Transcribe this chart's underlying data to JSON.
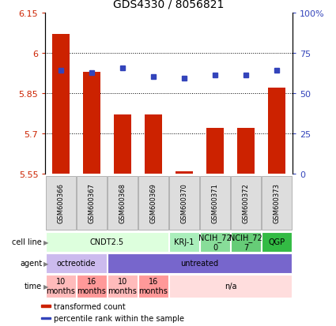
{
  "title": "GDS4330 / 8056821",
  "samples": [
    "GSM600366",
    "GSM600367",
    "GSM600368",
    "GSM600369",
    "GSM600370",
    "GSM600371",
    "GSM600372",
    "GSM600373"
  ],
  "red_values": [
    6.07,
    5.93,
    5.77,
    5.77,
    5.56,
    5.72,
    5.72,
    5.87
  ],
  "blue_values": [
    5.935,
    5.925,
    5.945,
    5.912,
    5.906,
    5.918,
    5.918,
    5.935
  ],
  "ymin": 5.55,
  "ymax": 6.15,
  "yticks": [
    5.55,
    5.7,
    5.85,
    6.0,
    6.15
  ],
  "ytick_labels": [
    "5.55",
    "5.7",
    "5.85",
    "6",
    "6.15"
  ],
  "y2ticks_pct": [
    0,
    25,
    50,
    75,
    100
  ],
  "y2tick_labels": [
    "0",
    "25",
    "50",
    "75",
    "100%"
  ],
  "bar_bottom": 5.55,
  "bar_color": "#cc2200",
  "dot_color": "#3344bb",
  "grid_lines": [
    5.7,
    5.85,
    6.0
  ],
  "cell_line_groups": [
    {
      "label": "CNDT2.5",
      "start": 0,
      "end": 4,
      "color": "#ddffdd"
    },
    {
      "label": "KRJ-1",
      "start": 4,
      "end": 5,
      "color": "#aaeebb"
    },
    {
      "label": "NCIH_72\n0",
      "start": 5,
      "end": 6,
      "color": "#88dd99"
    },
    {
      "label": "NCIH_72\n7",
      "start": 6,
      "end": 7,
      "color": "#66cc77"
    },
    {
      "label": "QGP",
      "start": 7,
      "end": 8,
      "color": "#33bb44"
    }
  ],
  "agent_groups": [
    {
      "label": "octreotide",
      "start": 0,
      "end": 2,
      "color": "#ccbbee"
    },
    {
      "label": "untreated",
      "start": 2,
      "end": 8,
      "color": "#7766cc"
    }
  ],
  "time_groups": [
    {
      "label": "10\nmonths",
      "start": 0,
      "end": 1,
      "color": "#ffbbbb"
    },
    {
      "label": "16\nmonths",
      "start": 1,
      "end": 2,
      "color": "#ff9999"
    },
    {
      "label": "10\nmonths",
      "start": 2,
      "end": 3,
      "color": "#ffbbbb"
    },
    {
      "label": "16\nmonths",
      "start": 3,
      "end": 4,
      "color": "#ff9999"
    },
    {
      "label": "n/a",
      "start": 4,
      "end": 8,
      "color": "#ffdddd"
    }
  ],
  "row_labels": [
    "cell line",
    "agent",
    "time"
  ],
  "legend_items": [
    {
      "color": "#cc2200",
      "label": "transformed count"
    },
    {
      "color": "#3344bb",
      "label": "percentile rank within the sample"
    }
  ],
  "sample_box_color": "#dddddd",
  "sample_box_edge": "#aaaaaa"
}
